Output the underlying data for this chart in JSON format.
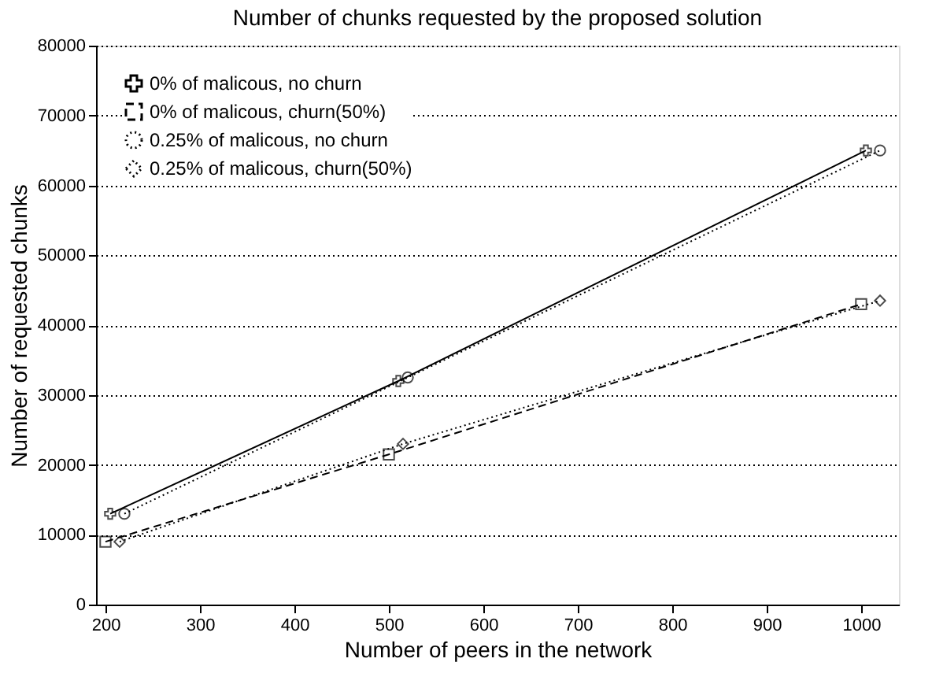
{
  "chart_data": {
    "type": "line",
    "title": "Number of chunks requested by the proposed solution",
    "xlabel": "Number of peers in the network",
    "ylabel": "Number of requested chunks",
    "xlim": [
      190,
      1040
    ],
    "xticks": [
      200,
      300,
      400,
      500,
      600,
      700,
      800,
      900,
      1000
    ],
    "ylim": [
      0,
      80000
    ],
    "yticks": [
      0,
      10000,
      20000,
      30000,
      40000,
      50000,
      60000,
      70000,
      80000
    ],
    "grid": "y",
    "legend": "top left",
    "series": [
      {
        "name": "0% of malicous, no churn",
        "color": "#000000",
        "marker": "cross",
        "line_style": "solid",
        "x": [
          205,
          510,
          1005
        ],
        "values": [
          13000,
          32000,
          65000
        ]
      },
      {
        "name": "0% of malicous, churn(50%)",
        "color": "#000000",
        "marker": "square",
        "line_style": "dashed",
        "x": [
          200,
          500,
          1000
        ],
        "values": [
          9000,
          21500,
          43000
        ]
      },
      {
        "name": "0.25% of malicous, no churn",
        "color": "#000000",
        "marker": "circle",
        "line_style": "dotted",
        "x": [
          220,
          520,
          1020
        ],
        "values": [
          13000,
          32500,
          65000
        ]
      },
      {
        "name": "0.25% of malicous, churn(50%)",
        "color": "#000000",
        "marker": "diamond",
        "line_style": "dotted",
        "x": [
          215,
          515,
          1020
        ],
        "values": [
          9000,
          23000,
          43500
        ]
      }
    ]
  }
}
